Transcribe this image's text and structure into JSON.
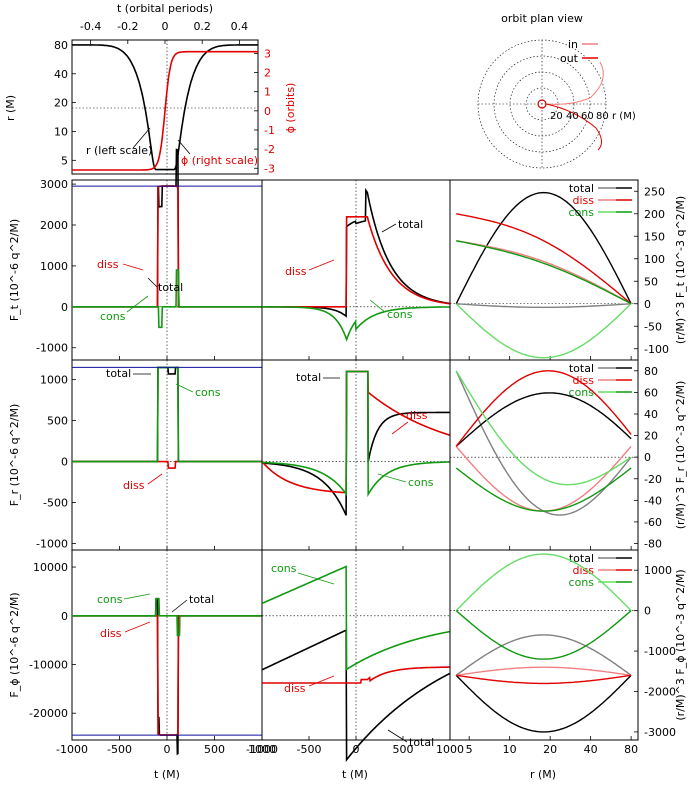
{
  "chart_data": {
    "type": "line",
    "colors": {
      "total_in": "#808080",
      "total_out": "#000000",
      "diss_in": "#f08080",
      "diss_out": "#e00000",
      "cons_in": "#66dd66",
      "cons_out": "#119911",
      "max_line": "#1010a0",
      "phi": "#e00000",
      "r": "#000000"
    },
    "orbit": {
      "top_axis_label": "t (orbital periods)",
      "top_ticks": [
        "-0.4",
        "-0.2",
        "0",
        "0.2",
        "0.4"
      ],
      "top_ticks_values": [
        -0.4,
        -0.2,
        0,
        0.2,
        0.4
      ],
      "r_ylabel": "r (M)",
      "r_ticks": [
        "5",
        "10",
        "20",
        "40",
        "80"
      ],
      "r_ticks_values": [
        5,
        10,
        20,
        40,
        80
      ],
      "phi_ylabel": "ϕ (orbits)",
      "phi_ticks": [
        "3",
        "2",
        "1",
        "0",
        "-1",
        "-2",
        "-3"
      ],
      "phi_ticks_values": [
        3,
        2,
        1,
        0,
        -1,
        -2,
        -3
      ],
      "r_label": "r (left scale)",
      "phi_label": "ϕ (right scale)"
    },
    "plan": {
      "title": "orbit plan view",
      "legend_in": "in",
      "legend_out": "out",
      "ring_labels": [
        "20",
        "40",
        "60",
        "80"
      ],
      "r_axis_label": "r (M)"
    },
    "time_axis": {
      "ticks": [
        "-1000",
        "-500",
        "0",
        "500",
        "1000"
      ],
      "ticks_values": [
        -1000,
        -500,
        0,
        500,
        1000
      ],
      "label": "t (M)"
    },
    "radius_axis": {
      "ticks": [
        "5",
        "10",
        "20",
        "40",
        "80"
      ],
      "ticks_values": [
        5,
        10,
        20,
        40,
        80
      ],
      "label": "r (M)"
    },
    "rows": [
      {
        "left_ylabel": "F_t (10^-6 q^2/M)",
        "left_ticks": [
          "3000",
          "2000",
          "1000",
          "0",
          "-1000"
        ],
        "left_ticks_values": [
          3000,
          2000,
          1000,
          0,
          -1000
        ],
        "right_ylabel": "(r/M)^3 F_t (10^-3 q^2/M)",
        "right_ticks": [
          "250",
          "200",
          "150",
          "100",
          "50",
          "0",
          "-50",
          "-100"
        ],
        "right_ticks_values": [
          250,
          200,
          150,
          100,
          50,
          0,
          -50,
          -100
        ],
        "left_labels": {
          "diss": "diss",
          "total": "total",
          "cons": "cons"
        },
        "mid_labels": {
          "total": "total",
          "diss": "diss",
          "cons": "cons"
        },
        "legend": [
          "total",
          "diss",
          "cons"
        ]
      },
      {
        "left_ylabel": "F_r (10^-6 q^2/M)",
        "left_ticks": [
          "1000",
          "500",
          "0",
          "-500",
          "-1000"
        ],
        "left_ticks_values": [
          1000,
          500,
          0,
          -500,
          -1000
        ],
        "right_ylabel": "(r/M)^3 F_r (10^-3 q^2/M)",
        "right_ticks": [
          "80",
          "60",
          "40",
          "20",
          "0",
          "-20",
          "-40",
          "-60",
          "-80"
        ],
        "right_ticks_values": [
          80,
          60,
          40,
          20,
          0,
          -20,
          -40,
          -60,
          -80
        ],
        "left_labels": {
          "total": "total",
          "cons": "cons",
          "diss": "diss"
        },
        "mid_labels": {
          "total": "total",
          "diss": "diss",
          "cons": "cons"
        },
        "legend": [
          "total",
          "diss",
          "cons"
        ]
      },
      {
        "left_ylabel": "F_ϕ (10^-6 q^2/M)",
        "left_ticks": [
          "10000",
          "0",
          "-10000",
          "-20000"
        ],
        "left_ticks_values": [
          10000,
          0,
          -10000,
          -20000
        ],
        "right_ylabel": "(r/M)^3 F_ϕ (10^-3 q^2/M)",
        "right_ticks": [
          "1000",
          "0",
          "-1000",
          "-2000",
          "-3000"
        ],
        "right_ticks_values": [
          1000,
          0,
          -1000,
          -2000,
          -3000
        ],
        "left_labels": {
          "cons": "cons",
          "total": "total",
          "diss": "diss"
        },
        "mid_labels": {
          "cons": "cons",
          "diss": "diss",
          "total": "total"
        },
        "legend": [
          "total",
          "diss",
          "cons"
        ]
      }
    ]
  }
}
